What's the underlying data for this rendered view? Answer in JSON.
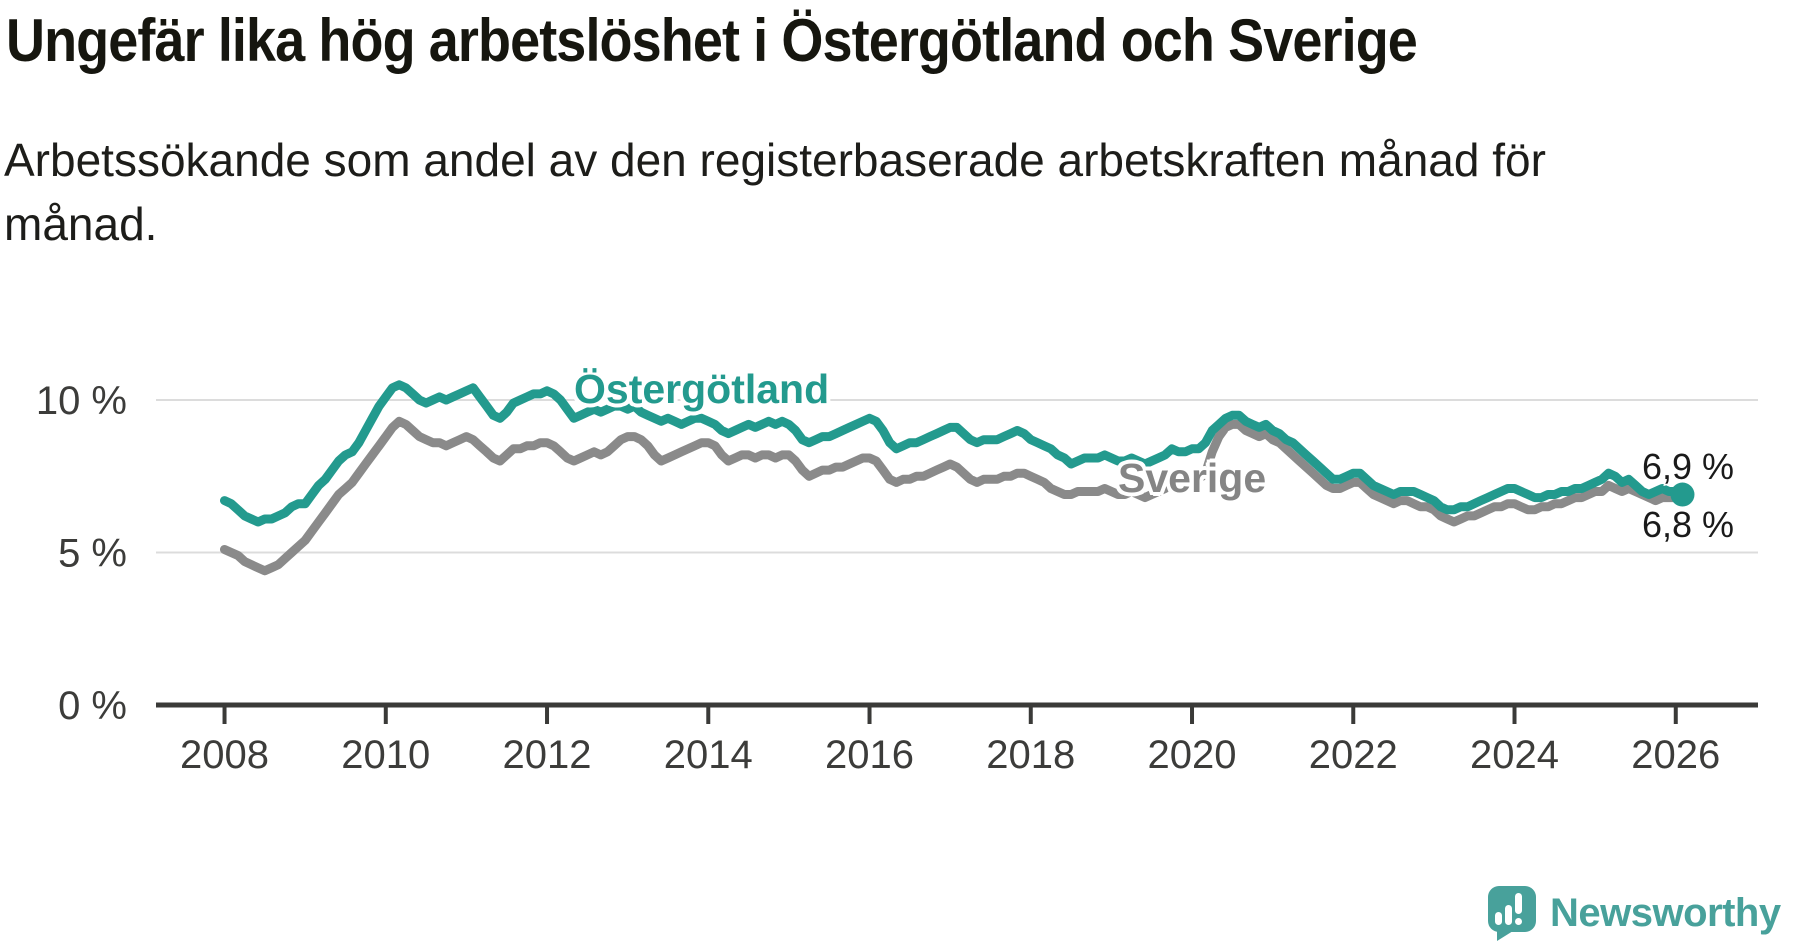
{
  "title": "Ungefär lika hög arbetslöshet i Östergötland och Sverige",
  "subtitle": "Arbetssökande som andel av den registerbaserade arbetskraften månad för månad.",
  "branding": {
    "logo_text": "Newsworthy",
    "logo_icon": "newsworthy-speech-bubble-bar-chart-icon"
  },
  "colors": {
    "ostergotland_line": "#239a8e",
    "sverige_line": "#8a8a8a",
    "gridline": "#dcdcdc",
    "axis": "#3a3a38",
    "tick_text": "#3c3c3a",
    "title_text": "#16160f",
    "value_label_text": "#1a1a1a",
    "brand_teal": "#48a19b"
  },
  "chart_data": {
    "type": "line",
    "title": "Ungefär lika hög arbetslöshet i Östergötland och Sverige",
    "xlabel": "",
    "ylabel": "",
    "unit": "%",
    "frequency": "monthly",
    "start": "2008-01",
    "end": "2026-02",
    "xlim": [
      2007.15,
      2027.02
    ],
    "ylim": [
      0,
      12.3
    ],
    "grid": "horizontal",
    "legend_position": "inline-labels",
    "x_ticks": [
      {
        "value": 2008,
        "label": "2008"
      },
      {
        "value": 2010,
        "label": "2010"
      },
      {
        "value": 2012,
        "label": "2012"
      },
      {
        "value": 2014,
        "label": "2014"
      },
      {
        "value": 2016,
        "label": "2016"
      },
      {
        "value": 2018,
        "label": "2018"
      },
      {
        "value": 2020,
        "label": "2020"
      },
      {
        "value": 2022,
        "label": "2022"
      },
      {
        "value": 2024,
        "label": "2024"
      },
      {
        "value": 2026,
        "label": "2026"
      }
    ],
    "y_ticks": [
      {
        "value": 0,
        "label": "0 %"
      },
      {
        "value": 5,
        "label": "5 %"
      },
      {
        "value": 10,
        "label": "10 %"
      }
    ],
    "series": [
      {
        "name": "Östergötland",
        "color": "#239a8e",
        "end_label": "6,9 %",
        "end_value": 6.9,
        "end_dot": true,
        "values": [
          6.7,
          6.6,
          6.4,
          6.2,
          6.1,
          6.0,
          6.1,
          6.1,
          6.2,
          6.3,
          6.5,
          6.6,
          6.6,
          6.9,
          7.2,
          7.4,
          7.7,
          8.0,
          8.2,
          8.3,
          8.6,
          9.0,
          9.4,
          9.8,
          10.1,
          10.4,
          10.5,
          10.4,
          10.2,
          10.0,
          9.9,
          10.0,
          10.1,
          10.0,
          10.1,
          10.2,
          10.3,
          10.4,
          10.1,
          9.8,
          9.5,
          9.4,
          9.6,
          9.9,
          10.0,
          10.1,
          10.2,
          10.2,
          10.3,
          10.2,
          10.0,
          9.7,
          9.4,
          9.5,
          9.6,
          9.7,
          9.6,
          9.7,
          9.8,
          9.8,
          9.7,
          9.8,
          9.6,
          9.5,
          9.4,
          9.3,
          9.4,
          9.3,
          9.2,
          9.3,
          9.4,
          9.4,
          9.3,
          9.2,
          9.0,
          8.9,
          9.0,
          9.1,
          9.2,
          9.1,
          9.2,
          9.3,
          9.2,
          9.3,
          9.2,
          9.0,
          8.7,
          8.6,
          8.7,
          8.8,
          8.8,
          8.9,
          9.0,
          9.1,
          9.2,
          9.3,
          9.4,
          9.3,
          9.0,
          8.6,
          8.4,
          8.5,
          8.6,
          8.6,
          8.7,
          8.8,
          8.9,
          9.0,
          9.1,
          9.1,
          8.9,
          8.7,
          8.6,
          8.7,
          8.7,
          8.7,
          8.8,
          8.9,
          9.0,
          8.9,
          8.7,
          8.6,
          8.5,
          8.4,
          8.2,
          8.1,
          7.9,
          8.0,
          8.1,
          8.1,
          8.1,
          8.2,
          8.1,
          8.0,
          8.0,
          8.1,
          8.0,
          7.9,
          8.0,
          8.1,
          8.2,
          8.4,
          8.3,
          8.3,
          8.4,
          8.4,
          8.6,
          9.0,
          9.2,
          9.4,
          9.5,
          9.5,
          9.3,
          9.2,
          9.1,
          9.2,
          9.0,
          8.9,
          8.7,
          8.6,
          8.4,
          8.2,
          8.0,
          7.8,
          7.6,
          7.4,
          7.4,
          7.5,
          7.6,
          7.6,
          7.4,
          7.2,
          7.1,
          7.0,
          6.9,
          7.0,
          7.0,
          7.0,
          6.9,
          6.8,
          6.7,
          6.5,
          6.4,
          6.4,
          6.5,
          6.5,
          6.6,
          6.7,
          6.8,
          6.9,
          7.0,
          7.1,
          7.1,
          7.0,
          6.9,
          6.8,
          6.8,
          6.9,
          6.9,
          7.0,
          7.0,
          7.1,
          7.1,
          7.2,
          7.3,
          7.4,
          7.6,
          7.5,
          7.3,
          7.4,
          7.2,
          7.0,
          6.9,
          7.0,
          7.1,
          7.0,
          7.0,
          6.9
        ]
      },
      {
        "name": "Sverige",
        "color": "#8a8a8a",
        "end_label": "6,8 %",
        "end_value": 6.8,
        "end_dot": false,
        "values": [
          5.1,
          5.0,
          4.9,
          4.7,
          4.6,
          4.5,
          4.4,
          4.5,
          4.6,
          4.8,
          5.0,
          5.2,
          5.4,
          5.7,
          6.0,
          6.3,
          6.6,
          6.9,
          7.1,
          7.3,
          7.6,
          7.9,
          8.2,
          8.5,
          8.8,
          9.1,
          9.3,
          9.2,
          9.0,
          8.8,
          8.7,
          8.6,
          8.6,
          8.5,
          8.6,
          8.7,
          8.8,
          8.7,
          8.5,
          8.3,
          8.1,
          8.0,
          8.2,
          8.4,
          8.4,
          8.5,
          8.5,
          8.6,
          8.6,
          8.5,
          8.3,
          8.1,
          8.0,
          8.1,
          8.2,
          8.3,
          8.2,
          8.3,
          8.5,
          8.7,
          8.8,
          8.8,
          8.7,
          8.5,
          8.2,
          8.0,
          8.1,
          8.2,
          8.3,
          8.4,
          8.5,
          8.6,
          8.6,
          8.5,
          8.2,
          8.0,
          8.1,
          8.2,
          8.2,
          8.1,
          8.2,
          8.2,
          8.1,
          8.2,
          8.2,
          8.0,
          7.7,
          7.5,
          7.6,
          7.7,
          7.7,
          7.8,
          7.8,
          7.9,
          8.0,
          8.1,
          8.1,
          8.0,
          7.7,
          7.4,
          7.3,
          7.4,
          7.4,
          7.5,
          7.5,
          7.6,
          7.7,
          7.8,
          7.9,
          7.8,
          7.6,
          7.4,
          7.3,
          7.4,
          7.4,
          7.4,
          7.5,
          7.5,
          7.6,
          7.6,
          7.5,
          7.4,
          7.3,
          7.1,
          7.0,
          6.9,
          6.9,
          7.0,
          7.0,
          7.0,
          7.0,
          7.1,
          7.0,
          6.9,
          6.9,
          7.0,
          6.9,
          6.8,
          6.9,
          7.0,
          7.1,
          7.3,
          7.2,
          7.3,
          7.4,
          7.4,
          7.6,
          8.3,
          8.8,
          9.1,
          9.2,
          9.2,
          9.0,
          8.9,
          8.8,
          8.9,
          8.7,
          8.6,
          8.4,
          8.2,
          8.0,
          7.8,
          7.6,
          7.4,
          7.2,
          7.1,
          7.1,
          7.2,
          7.3,
          7.3,
          7.1,
          6.9,
          6.8,
          6.7,
          6.6,
          6.7,
          6.7,
          6.6,
          6.5,
          6.5,
          6.4,
          6.2,
          6.1,
          6.0,
          6.1,
          6.2,
          6.2,
          6.3,
          6.4,
          6.5,
          6.5,
          6.6,
          6.6,
          6.5,
          6.4,
          6.4,
          6.5,
          6.5,
          6.6,
          6.6,
          6.7,
          6.8,
          6.8,
          6.9,
          7.0,
          7.0,
          7.2,
          7.1,
          7.0,
          7.1,
          7.0,
          6.9,
          6.8,
          6.7,
          6.8,
          6.8,
          6.8,
          6.8
        ]
      }
    ]
  }
}
